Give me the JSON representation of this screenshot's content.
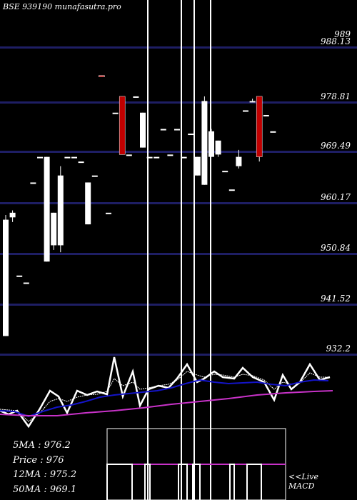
{
  "title": "BSE 939190  munafasutra.pro",
  "chart_data": {
    "type": "candlestick",
    "ylim": [
      927.5,
      993.5
    ],
    "y_ticks": [
      "989",
      "988.13",
      "978.81",
      "969.49",
      "960.17",
      "950.84",
      "941.52",
      "932.2"
    ],
    "candles": [
      {
        "o": 955.5,
        "h": 956.5,
        "l": 930.5,
        "c": 930.5
      },
      {
        "o": 956.0,
        "h": 957.5,
        "l": 955.0,
        "c": 957.0
      },
      {
        "o": 943.5,
        "h": 943.5,
        "l": 943.5,
        "c": 943.5
      },
      {
        "o": 942.0,
        "h": 942.0,
        "l": 942.0,
        "c": 942.0
      },
      {
        "o": 963.5,
        "h": 963.5,
        "l": 963.5,
        "c": 963.5
      },
      {
        "o": 969.0,
        "h": 969.0,
        "l": 969.0,
        "c": 969.0
      },
      {
        "o": 969.0,
        "h": 969.0,
        "l": 946.5,
        "c": 946.5
      },
      {
        "o": 957.0,
        "h": 957.0,
        "l": 949.0,
        "c": 950.0
      },
      {
        "o": 965.0,
        "h": 967.0,
        "l": 948.5,
        "c": 950.0
      },
      {
        "o": 969.0,
        "h": 969.0,
        "l": 969.0,
        "c": 969.0
      },
      {
        "o": 969.0,
        "h": 969.0,
        "l": 969.0,
        "c": 969.0
      },
      {
        "o": 968.0,
        "h": 968.0,
        "l": 968.0,
        "c": 968.0
      },
      {
        "o": 963.5,
        "h": 963.5,
        "l": 954.5,
        "c": 954.5
      },
      {
        "o": 965.0,
        "h": 965.0,
        "l": 965.0,
        "c": 965.0
      },
      {
        "o": 986.5,
        "h": 986.5,
        "l": 986.5,
        "c": 986.5
      },
      {
        "o": 957.0,
        "h": 957.0,
        "l": 957.0,
        "c": 957.0
      },
      {
        "o": 978.5,
        "h": 978.5,
        "l": 978.5,
        "c": 978.5
      },
      {
        "o": 969.5,
        "h": 982.0,
        "l": 969.5,
        "c": 982.0
      },
      {
        "o": 969.5,
        "h": 969.5,
        "l": 969.5,
        "c": 969.5
      },
      {
        "o": 982.0,
        "h": 982.0,
        "l": 982.0,
        "c": 982.0
      },
      {
        "o": 978.5,
        "h": 978.5,
        "l": 971.0,
        "c": 971.0
      },
      {
        "o": 969.0,
        "h": 969.0,
        "l": 969.0,
        "c": 969.0
      },
      {
        "o": 969.0,
        "h": 969.0,
        "l": 969.0,
        "c": 969.0
      },
      {
        "o": 975.0,
        "h": 975.0,
        "l": 975.0,
        "c": 975.0
      },
      {
        "o": 969.5,
        "h": 969.5,
        "l": 969.5,
        "c": 969.5
      },
      {
        "o": 975.0,
        "h": 975.0,
        "l": 975.0,
        "c": 975.0
      },
      {
        "o": 969.0,
        "h": 969.0,
        "l": 969.0,
        "c": 969.0
      },
      {
        "o": 974.0,
        "h": 974.0,
        "l": 974.0,
        "c": 974.0
      },
      {
        "o": 969.0,
        "h": 969.0,
        "l": 965.0,
        "c": 965.0
      },
      {
        "o": 981.0,
        "h": 982.0,
        "l": 963.0,
        "c": 963.0
      },
      {
        "o": 974.5,
        "h": 975.0,
        "l": 969.0,
        "c": 969.0
      },
      {
        "o": 972.5,
        "h": 972.5,
        "l": 969.0,
        "c": 969.5
      },
      {
        "o": 966.0,
        "h": 966.0,
        "l": 966.0,
        "c": 966.0
      },
      {
        "o": 962.0,
        "h": 962.0,
        "l": 962.0,
        "c": 962.0
      },
      {
        "o": 969.0,
        "h": 970.5,
        "l": 966.5,
        "c": 967.0
      },
      {
        "o": 979.0,
        "h": 979.0,
        "l": 979.0,
        "c": 979.0
      },
      {
        "o": 981.0,
        "h": 981.5,
        "l": 981.0,
        "c": 981.0
      },
      {
        "o": 969.0,
        "h": 982.0,
        "l": 968.0,
        "c": 982.0
      },
      {
        "o": 978.0,
        "h": 978.0,
        "l": 978.0,
        "c": 978.0
      },
      {
        "o": 974.5,
        "h": 974.5,
        "l": 974.5,
        "c": 974.5
      }
    ],
    "red_candles": [
      14,
      17,
      37
    ],
    "stats": {
      "ma5": "5MA : 976.2",
      "price": "Price  : 976",
      "ma12": "12MA : 975.2",
      "ma50": "50MA : 969.1"
    },
    "macd_label": "<<Live MACD",
    "grid_on": true
  },
  "colors": {
    "grid": "#1e1e64",
    "candle": "#ffffff",
    "candle_red": "#c00000",
    "line_price": "#ffffff",
    "line_short": "#ffffff",
    "line_long": "#1414c8",
    "line_ma50": "#c832c8",
    "macd_line": "#c832c8",
    "macd_box": "#ffffff"
  }
}
